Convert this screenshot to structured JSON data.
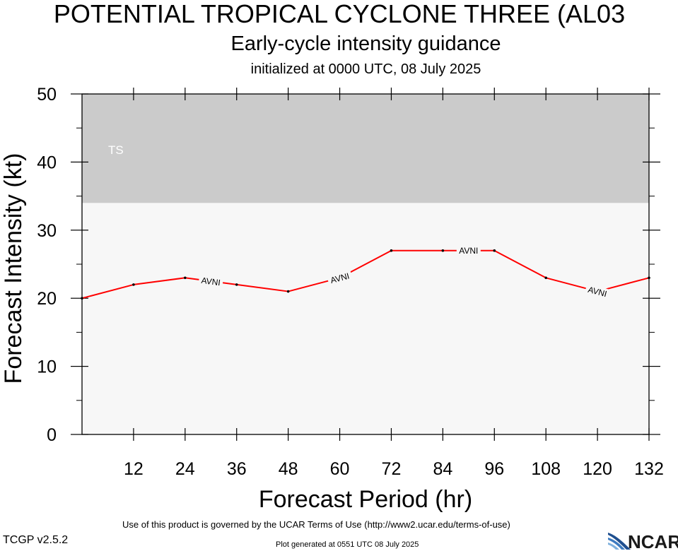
{
  "header": {
    "title": "POTENTIAL TROPICAL CYCLONE THREE (AL03",
    "subtitle": "Early-cycle intensity guidance",
    "initialized": "initialized at 0000 UTC, 08 July 2025"
  },
  "footer": {
    "terms": "Use of this product is governed by the UCAR Terms of Use (http://www2.ucar.edu/terms-of-use)",
    "version": "TCGP v2.5.2",
    "generated": "Plot generated at 0551 UTC   08 July 2025",
    "logo_text": "NCAR"
  },
  "chart_data": {
    "type": "line",
    "xlabel": "Forecast Period (hr)",
    "ylabel": "Forecast Intensity (kt)",
    "xlim": [
      0,
      132
    ],
    "ylim": [
      0,
      50
    ],
    "xticks": [
      12,
      24,
      36,
      48,
      60,
      72,
      84,
      96,
      108,
      120,
      132
    ],
    "yticks": [
      0,
      10,
      20,
      30,
      40,
      50
    ],
    "bands": [
      {
        "label": "TS",
        "from": 34,
        "to": 50,
        "color": "#cbcbcb"
      }
    ],
    "plot_background": "#f7f7f7",
    "series": [
      {
        "name": "AVNI",
        "color": "#ff0000",
        "x": [
          0,
          12,
          24,
          36,
          48,
          60,
          72,
          84,
          96,
          108,
          120,
          132
        ],
        "y": [
          20,
          22,
          23,
          22,
          21,
          23,
          27,
          27,
          27,
          23,
          21,
          23
        ],
        "label_at_x": [
          30,
          60,
          90,
          120
        ]
      }
    ]
  }
}
